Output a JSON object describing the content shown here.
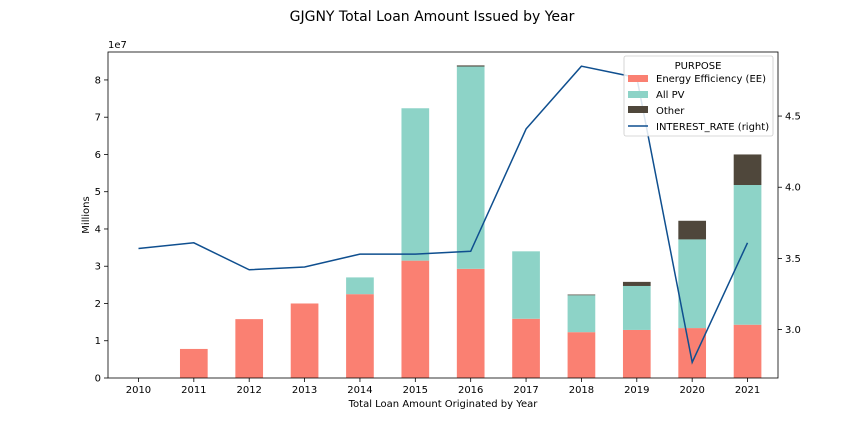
{
  "chart_data": {
    "type": "bar",
    "stacked": true,
    "title": "GJGNY Total Loan Amount Issued by Year",
    "xlabel": "Total Loan Amount Originated by Year",
    "ylabel": "Millions",
    "y_offset_text": "1e7",
    "categories": [
      "2010",
      "2011",
      "2012",
      "2013",
      "2014",
      "2015",
      "2016",
      "2017",
      "2018",
      "2019",
      "2020",
      "2021"
    ],
    "ylim": [
      0,
      87500000
    ],
    "y_ticks": [
      0,
      10000000,
      20000000,
      30000000,
      40000000,
      50000000,
      60000000,
      70000000,
      80000000
    ],
    "y_tick_labels": [
      "0",
      "1",
      "2",
      "3",
      "4",
      "5",
      "6",
      "7",
      "8"
    ],
    "series": [
      {
        "name": "Energy Efficiency (EE)",
        "color": "#fa8072",
        "values": [
          0,
          7800000,
          15800000,
          20000000,
          22500000,
          31500000,
          29300000,
          15900000,
          12300000,
          12900000,
          13400000,
          14300000
        ]
      },
      {
        "name": "All PV",
        "color": "#8dd3c7",
        "values": [
          0,
          0,
          0,
          0,
          4500000,
          40900000,
          54300000,
          18100000,
          9900000,
          11800000,
          23800000,
          37500000
        ]
      },
      {
        "name": "Other",
        "color": "#4f473b",
        "values": [
          0,
          0,
          0,
          0,
          0,
          0,
          300000,
          0,
          200000,
          1100000,
          5000000,
          8200000
        ]
      }
    ],
    "right_axis": {
      "name": "INTEREST_RATE (right)",
      "color": "#0f4f8f",
      "ylim": [
        2.66,
        4.95
      ],
      "ticks": [
        3.0,
        3.5,
        4.0,
        4.5
      ],
      "tick_labels": [
        "3.0",
        "3.5",
        "4.0",
        "4.5"
      ],
      "values": [
        3.57,
        3.61,
        3.42,
        3.44,
        3.53,
        3.53,
        3.55,
        4.41,
        4.85,
        4.77,
        2.77,
        3.61
      ]
    },
    "legend": {
      "title": "PURPOSE",
      "placement": "top-right"
    },
    "grid": false
  }
}
